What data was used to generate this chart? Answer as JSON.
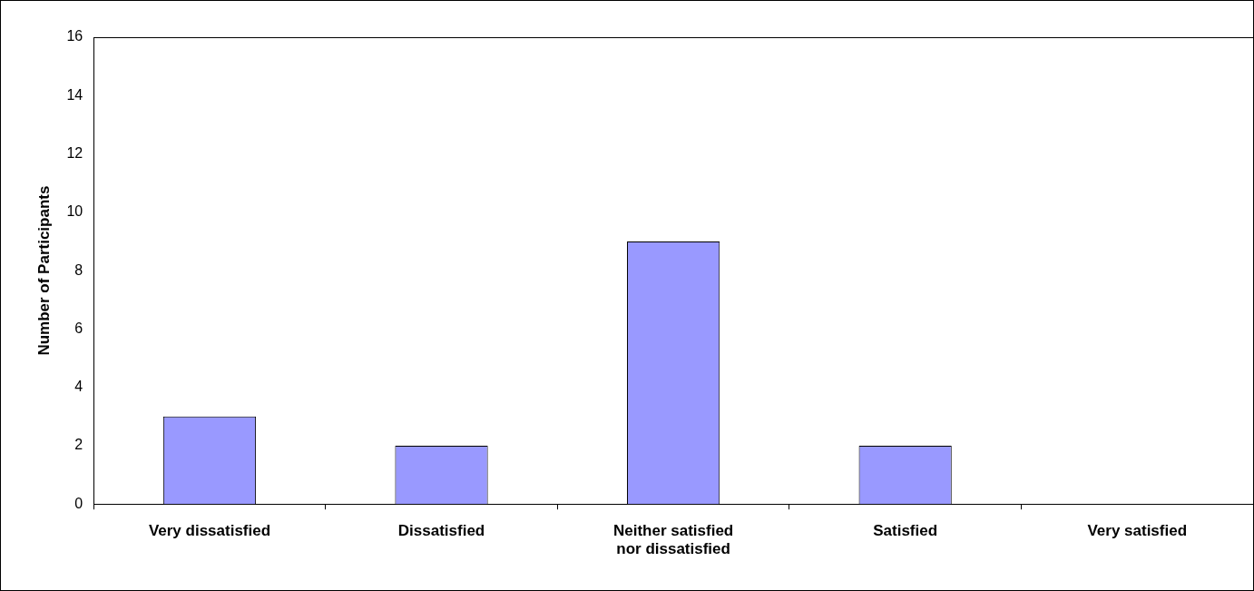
{
  "chart_data": {
    "type": "bar",
    "ylabel": "Number of Participants",
    "categories": [
      "Very dissatisfied",
      "Dissatisfied",
      "Neither satisfied nor dissatisfied",
      "Satisfied",
      "Very satisfied"
    ],
    "values": [
      3,
      2,
      9,
      2,
      0
    ],
    "color": "#9999ff",
    "ylim": [
      0,
      16
    ],
    "yticks": [
      0,
      2,
      4,
      6,
      8,
      10,
      12,
      14,
      16
    ],
    "grid": false,
    "legend": false
  }
}
